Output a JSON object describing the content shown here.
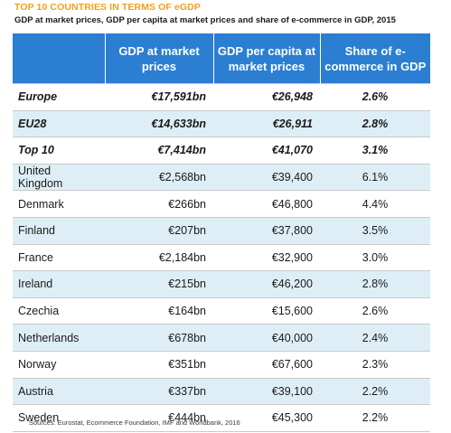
{
  "title": "TOP 10 COUNTRIES IN TERMS OF eGDP",
  "subtitle": "GDP at market prices, GDP per capita at market prices and share of e-commerce in GDP, 2015",
  "headers": [
    "",
    "GDP at market prices",
    "GDP per capita at market prices",
    "Share of e-commerce in GDP"
  ],
  "rows": [
    {
      "name": "Europe",
      "gdp": "€17,591bn",
      "per_capita": "€26,948",
      "share": "2.6%"
    },
    {
      "name": "EU28",
      "gdp": "€14,633bn",
      "per_capita": "€26,911",
      "share": "2.8%"
    },
    {
      "name": "Top 10",
      "gdp": "€7,414bn",
      "per_capita": "€41,070",
      "share": "3.1%"
    },
    {
      "name": "United Kingdom",
      "gdp": "€2,568bn",
      "per_capita": "€39,400",
      "share": "6.1%"
    },
    {
      "name": "Denmark",
      "gdp": "€266bn",
      "per_capita": "€46,800",
      "share": "4.4%"
    },
    {
      "name": "Finland",
      "gdp": "€207bn",
      "per_capita": "€37,800",
      "share": "3.5%"
    },
    {
      "name": "France",
      "gdp": "€2,184bn",
      "per_capita": "€32,900",
      "share": "3.0%"
    },
    {
      "name": "Ireland",
      "gdp": "€215bn",
      "per_capita": "€46,200",
      "share": "2.8%"
    },
    {
      "name": "Czechia",
      "gdp": "€164bn",
      "per_capita": "€15,600",
      "share": "2.6%"
    },
    {
      "name": "Netherlands",
      "gdp": "€678bn",
      "per_capita": "€40,000",
      "share": "2.4%"
    },
    {
      "name": "Norway",
      "gdp": "€351bn",
      "per_capita": "€67,600",
      "share": "2.3%"
    },
    {
      "name": "Austria",
      "gdp": "€337bn",
      "per_capita": "€39,100",
      "share": "2.2%"
    },
    {
      "name": "Sweden",
      "gdp": "€444bn",
      "per_capita": "€45,300",
      "share": "2.2%"
    }
  ],
  "source": "Sources: Eurostat, Ecommerce Foundation, IMF and Worldbank, 2016",
  "colors": {
    "title": "#f0a01e",
    "header_bg": "#2b7ed1",
    "alt_row": "#ddeef6"
  }
}
